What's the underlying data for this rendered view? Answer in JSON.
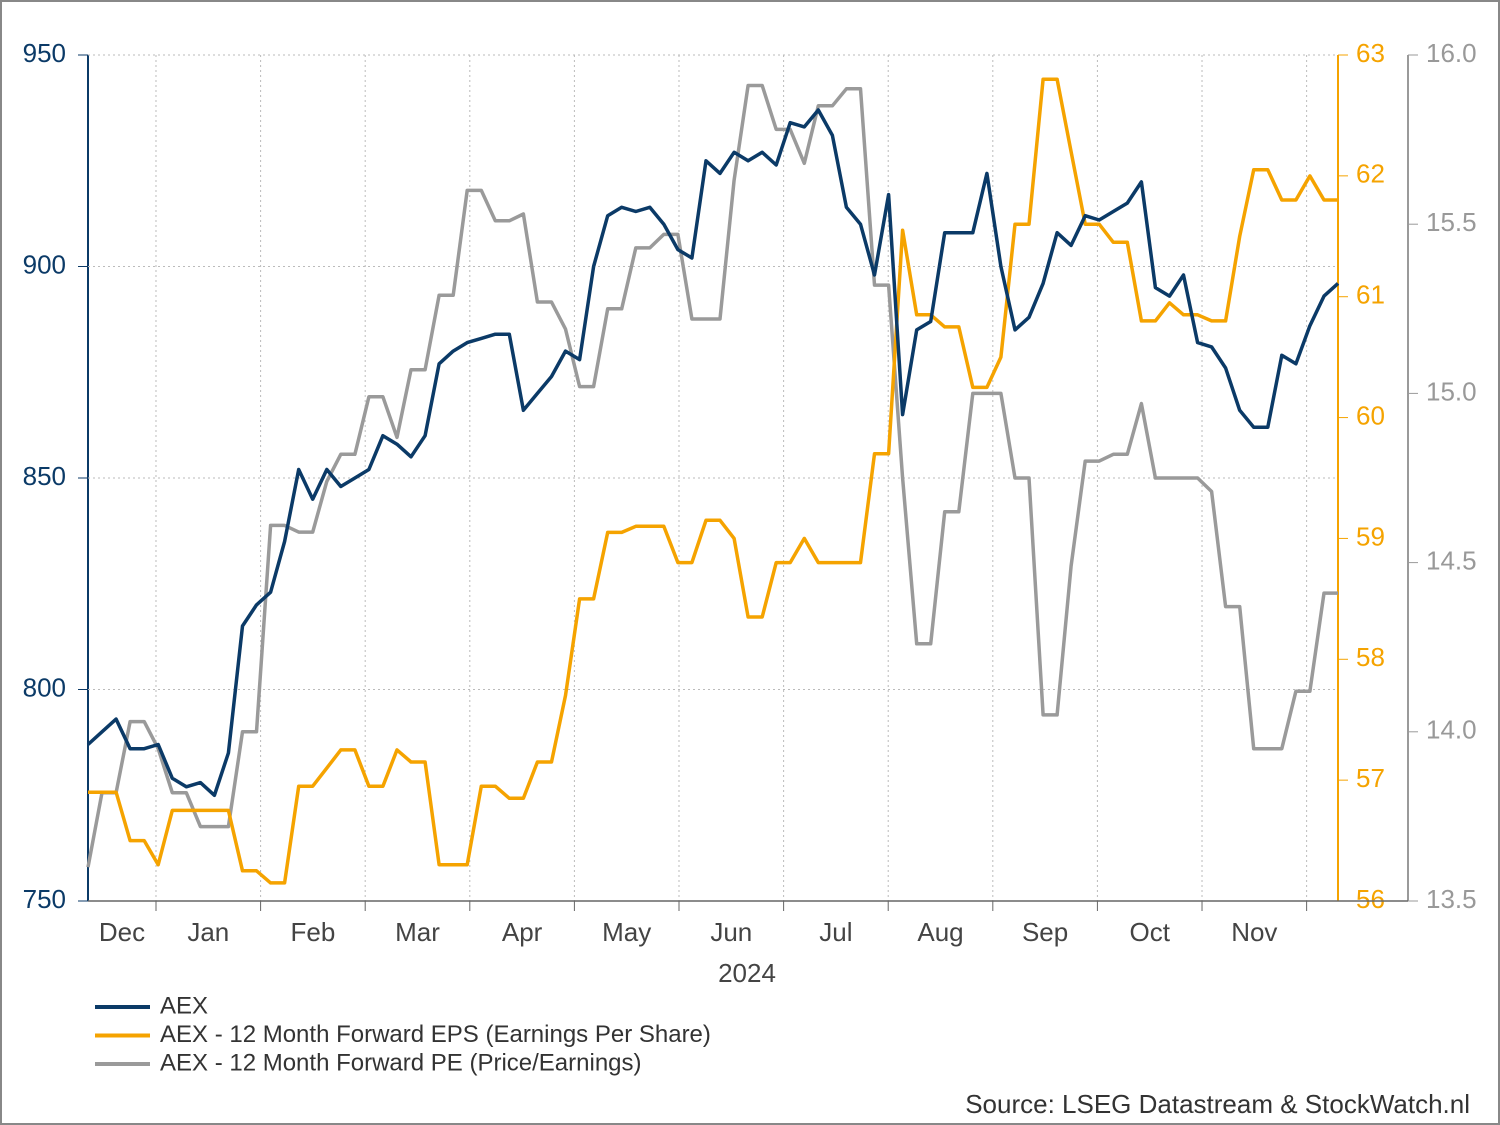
{
  "chart_data": {
    "type": "line",
    "xtick_labels": [
      "Dec",
      "Jan",
      "Feb",
      "Mar",
      "Apr",
      "May",
      "Jun",
      "Jul",
      "Aug",
      "Sep",
      "Oct",
      "Nov"
    ],
    "xlabel": "2024",
    "ylim": [
      750,
      950
    ],
    "yticks": [
      750,
      800,
      850,
      900,
      950
    ],
    "y2lim": [
      56,
      63
    ],
    "y2ticks": [
      56,
      57,
      58,
      59,
      60,
      61,
      62,
      63
    ],
    "y3lim": [
      13.5,
      16
    ],
    "y3ticks": [
      13.5,
      {
        "value": 14,
        "label": "14.0"
      },
      14.5,
      {
        "value": 15,
        "label": "15.0"
      },
      15.5,
      {
        "value": 16,
        "label": "16.0"
      }
    ],
    "grid": true,
    "series": [
      {
        "name": "AEX",
        "color": "#0b3a67",
        "axis": "y",
        "values": [
          787,
          790,
          793,
          786,
          786,
          787,
          779,
          777,
          778,
          775,
          785,
          815,
          820,
          823,
          835,
          852,
          845,
          852,
          848,
          850,
          852,
          860,
          858,
          855,
          860,
          877,
          880,
          882,
          883,
          884,
          884,
          866,
          870,
          874,
          880,
          878,
          900,
          912,
          914,
          913,
          914,
          910,
          904,
          902,
          925,
          922,
          927,
          925,
          927,
          924,
          934,
          933,
          937,
          931,
          914,
          910,
          898,
          917,
          865,
          885,
          887,
          908,
          908,
          908,
          922,
          900,
          885,
          888,
          896,
          908,
          905,
          912,
          911,
          913,
          915,
          920,
          895,
          893,
          898,
          882,
          881,
          876,
          866,
          862,
          862,
          879,
          877,
          886,
          893,
          896
        ]
      },
      {
        "name": "AEX - 12 Month Forward EPS (Earnings Per Share)",
        "color": "#f5a300",
        "axis": "y2",
        "values": [
          56.9,
          56.9,
          56.9,
          56.5,
          56.5,
          56.3,
          56.75,
          56.75,
          56.75,
          56.75,
          56.75,
          56.25,
          56.25,
          56.15,
          56.15,
          56.95,
          56.95,
          57.1,
          57.25,
          57.25,
          56.95,
          56.95,
          57.25,
          57.15,
          57.15,
          56.3,
          56.3,
          56.3,
          56.95,
          56.95,
          56.85,
          56.85,
          57.15,
          57.15,
          57.7,
          58.5,
          58.5,
          59.05,
          59.05,
          59.1,
          59.1,
          59.1,
          58.8,
          58.8,
          59.15,
          59.15,
          59.0,
          58.35,
          58.35,
          58.8,
          58.8,
          59.0,
          58.8,
          58.8,
          58.8,
          58.8,
          59.7,
          59.7,
          61.55,
          60.85,
          60.85,
          60.75,
          60.75,
          60.25,
          60.25,
          60.5,
          61.6,
          61.6,
          62.8,
          62.8,
          62.2,
          61.6,
          61.6,
          61.45,
          61.45,
          60.8,
          60.8,
          60.95,
          60.85,
          60.85,
          60.8,
          60.8,
          61.5,
          62.05,
          62.05,
          61.8,
          61.8,
          62.0,
          61.8,
          61.8
        ]
      },
      {
        "name": "AEX - 12 Month Forward PE (Price/Earnings)",
        "color": "#9a9a9a",
        "axis": "y3",
        "values": [
          13.6,
          13.82,
          13.82,
          14.03,
          14.03,
          13.95,
          13.82,
          13.82,
          13.72,
          13.72,
          13.72,
          14.0,
          14.0,
          14.61,
          14.61,
          14.59,
          14.59,
          14.74,
          14.82,
          14.82,
          14.99,
          14.99,
          14.87,
          15.07,
          15.07,
          15.29,
          15.29,
          15.6,
          15.6,
          15.51,
          15.51,
          15.53,
          15.27,
          15.27,
          15.19,
          15.02,
          15.02,
          15.25,
          15.25,
          15.43,
          15.43,
          15.47,
          15.47,
          15.22,
          15.22,
          15.22,
          15.63,
          15.91,
          15.91,
          15.78,
          15.78,
          15.68,
          15.85,
          15.85,
          15.9,
          15.9,
          15.32,
          15.32,
          14.75,
          14.26,
          14.26,
          14.65,
          14.65,
          15.0,
          15.0,
          15.0,
          14.75,
          14.75,
          14.05,
          14.05,
          14.49,
          14.8,
          14.8,
          14.82,
          14.82,
          14.97,
          14.75,
          14.75,
          14.75,
          14.75,
          14.71,
          14.37,
          14.37,
          13.95,
          13.95,
          13.95,
          14.12,
          14.12,
          14.41,
          14.41
        ]
      }
    ],
    "source": "Source: LSEG Datastream & StockWatch.nl"
  }
}
